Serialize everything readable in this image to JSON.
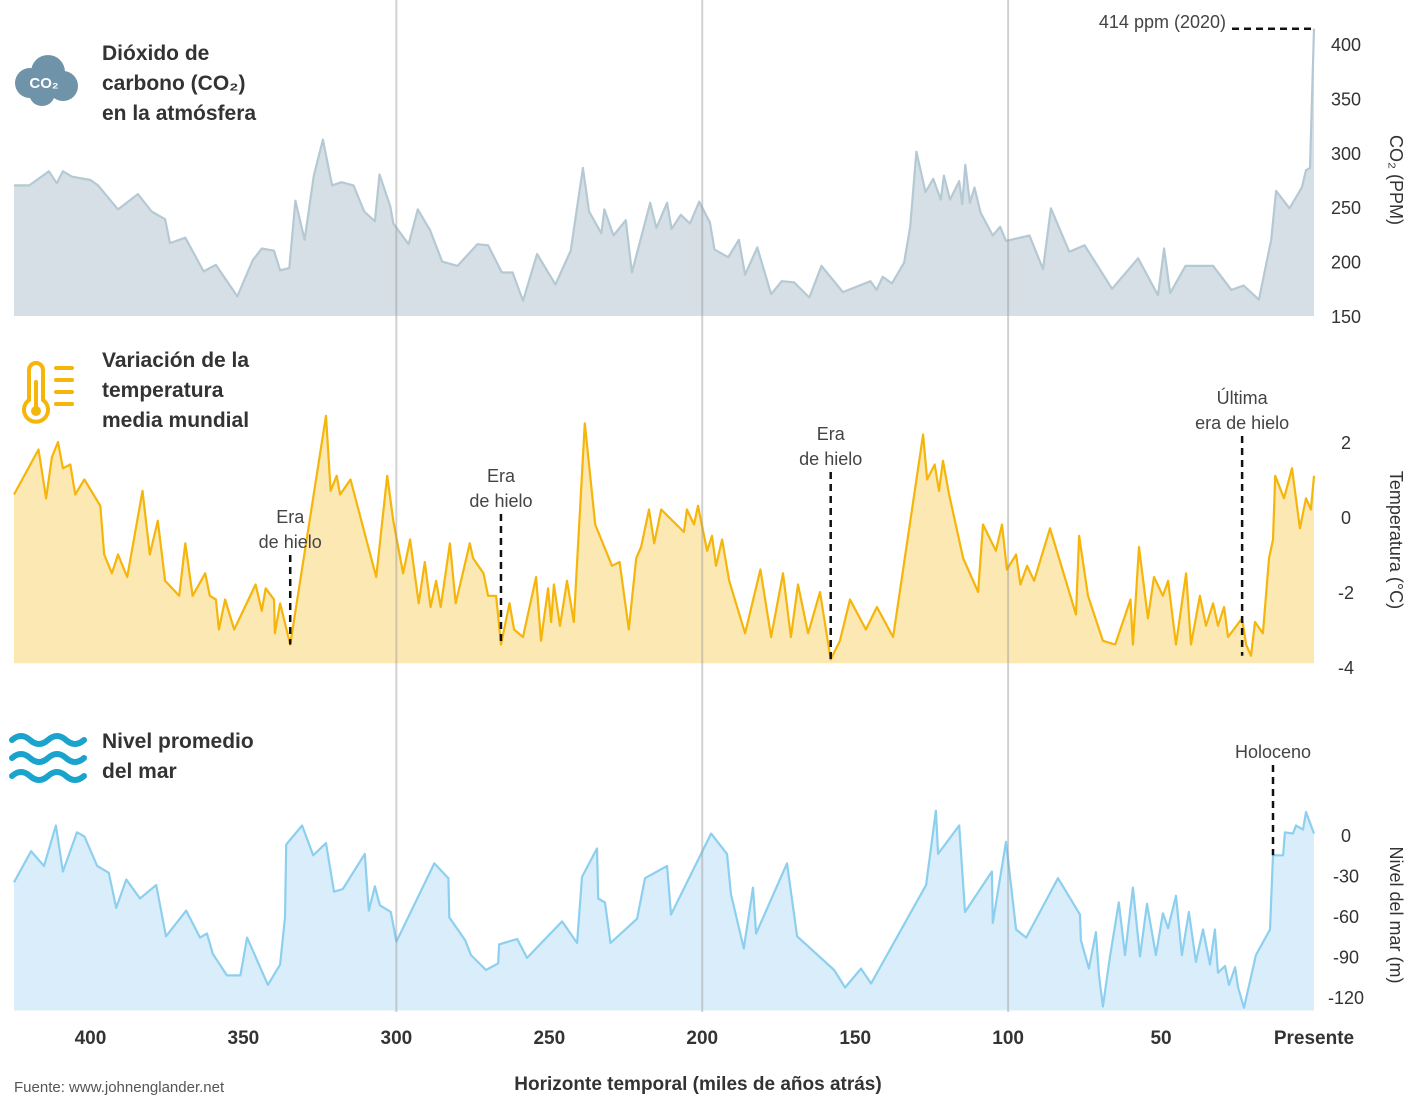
{
  "reference_lines": [
    300,
    200,
    100
  ],
  "source": "Fuente: www.johnenglander.net",
  "chart_data": [
    {
      "type": "area",
      "title_lines": [
        "Dióxido de",
        "carbono (CO₂)",
        "en la atmósfera"
      ],
      "icon_label": "CO₂",
      "y_label": "CO₂ (PPM)",
      "line_color": "#b5c9d4",
      "fill_color": "#d5dfe5",
      "xlim": [
        425,
        0
      ],
      "ylim": [
        150,
        420
      ],
      "yticks": [
        150,
        200,
        250,
        300,
        350,
        400
      ],
      "x": [
        425,
        420,
        413.6,
        411,
        409,
        406,
        400,
        397.5,
        391,
        384.5,
        380,
        375.6,
        374,
        369,
        363,
        359,
        352,
        347,
        344,
        340,
        338,
        335,
        333,
        330,
        327,
        324,
        321,
        318,
        314,
        310.5,
        307,
        305.5,
        302,
        301,
        296,
        293,
        289,
        285,
        280,
        273.5,
        270,
        265.5,
        262,
        258.6,
        254,
        248,
        243,
        239,
        237,
        233,
        232,
        229,
        225,
        223,
        217,
        215,
        211.5,
        210,
        207,
        204,
        201,
        197.5,
        196,
        191.5,
        188,
        186,
        182,
        177.5,
        174,
        170,
        165,
        161,
        154,
        145,
        143,
        141,
        138,
        134,
        132,
        130,
        127,
        124.5,
        122,
        121,
        119,
        116,
        115,
        114,
        112.5,
        111,
        109,
        105,
        102.6,
        100.7,
        93,
        88.6,
        86,
        80,
        75,
        66,
        57.5,
        51,
        49,
        47,
        42,
        33,
        27,
        23,
        18,
        14,
        12.4,
        8,
        4,
        2.6,
        1.3,
        0
      ],
      "values": [
        270,
        270,
        283,
        272,
        283,
        278,
        275,
        270,
        248,
        262,
        246,
        239,
        217,
        222,
        191,
        197,
        168,
        201,
        212,
        210,
        192,
        194,
        256,
        220,
        279,
        312,
        270,
        273,
        270,
        246,
        237,
        280,
        251,
        235,
        216,
        248,
        229,
        200,
        196,
        216,
        215,
        190,
        190,
        164,
        207,
        179,
        210,
        286,
        246,
        226,
        248,
        224,
        238,
        190,
        254,
        231,
        254,
        230,
        243,
        235,
        255,
        236,
        211,
        204,
        220,
        188,
        213,
        170,
        182,
        181,
        167,
        196,
        172,
        182,
        174,
        186,
        180,
        199,
        232,
        301,
        264,
        276,
        257,
        279,
        257,
        274,
        253,
        289,
        254,
        268,
        245,
        224,
        232,
        219,
        224,
        193,
        249,
        209,
        215,
        175,
        203,
        169,
        212,
        171,
        196,
        196,
        174,
        178,
        165,
        220,
        265,
        249,
        268,
        284,
        286,
        414
      ],
      "annotations": [
        {
          "text": [
            "414 ppm (2020)"
          ],
          "x": 0,
          "y": 414
        }
      ]
    },
    {
      "type": "area",
      "title_lines": [
        "Variación de la",
        "temperatura",
        "media mundial"
      ],
      "y_label": "Temperatura (°C)",
      "line_color": "#f5b50a",
      "fill_color": "#fce8b3",
      "xlim": [
        425,
        0
      ],
      "ylim": [
        -3.9,
        2.7
      ],
      "yticks": [
        -4,
        -2,
        0,
        2
      ],
      "x": [
        425,
        417,
        414.5,
        412.6,
        410.6,
        409,
        406.6,
        405,
        402,
        396.8,
        395.5,
        393,
        391,
        388,
        383,
        380.6,
        378,
        375.6,
        371,
        369,
        366.6,
        362.5,
        361,
        359,
        358,
        356,
        353,
        346,
        344,
        342.7,
        340,
        339.7,
        338,
        334.7,
        323,
        321.5,
        319.5,
        318.4,
        315,
        306.6,
        303,
        301,
        297.8,
        295.5,
        292.7,
        290.7,
        288.8,
        287,
        285.5,
        282.5,
        280.6,
        276,
        274.9,
        271.5,
        270,
        267.4,
        265.8,
        263,
        261.5,
        258.6,
        254.3,
        252.7,
        250.4,
        249.4,
        248.5,
        246.5,
        244.2,
        242,
        238.4,
        235,
        229.5,
        227,
        224,
        221.6,
        220,
        217.4,
        215.7,
        213.4,
        206,
        205,
        202.7,
        201.4,
        198.4,
        196.8,
        195.5,
        193.5,
        191.2,
        186,
        181,
        177.5,
        173.6,
        171,
        168.7,
        165.4,
        161.5,
        158,
        155,
        151.7,
        146.5,
        142.9,
        137.6,
        127.8,
        126.5,
        124,
        122.6,
        121.3,
        119.3,
        114.7,
        109.8,
        108.2,
        104,
        102,
        100.4,
        97.4,
        96,
        93.8,
        91.5,
        86.3,
        77.8,
        76.8,
        73.9,
        69,
        65,
        60,
        59.2,
        57.2,
        54.3,
        52.3,
        49.4,
        47.7,
        45.1,
        41.8,
        40.2,
        37.3,
        35.3,
        33,
        31.4,
        29.4,
        28.1,
        23.5,
        22.2,
        20.6,
        19.3,
        16.7,
        14.7,
        13.4,
        12.7,
        9.8,
        7.2,
        4.6,
        2.6,
        1,
        0
      ],
      "values": [
        0.6,
        1.8,
        0.5,
        1.6,
        2.0,
        1.3,
        1.4,
        0.6,
        1.0,
        0.3,
        -1.0,
        -1.5,
        -1.0,
        -1.6,
        0.7,
        -1.0,
        -0.1,
        -1.7,
        -2.1,
        -0.7,
        -2.1,
        -1.5,
        -2.1,
        -2.2,
        -3.0,
        -2.2,
        -3.0,
        -1.8,
        -2.5,
        -1.9,
        -2.2,
        -3.1,
        -2.3,
        -3.4,
        2.7,
        0.7,
        1.1,
        0.6,
        1.0,
        -1.6,
        1.1,
        -0.1,
        -1.5,
        -0.6,
        -2.3,
        -1.2,
        -2.4,
        -1.7,
        -2.4,
        -0.7,
        -2.3,
        -0.7,
        -1.1,
        -1.5,
        -2.1,
        -2.1,
        -3.4,
        -2.3,
        -3.0,
        -3.2,
        -1.6,
        -3.3,
        -1.9,
        -2.8,
        -1.8,
        -2.9,
        -1.7,
        -2.8,
        2.5,
        -0.2,
        -1.3,
        -1.2,
        -3.0,
        -1.1,
        -0.8,
        0.2,
        -0.7,
        0.2,
        -0.4,
        0.2,
        -0.2,
        0.3,
        -0.9,
        -0.5,
        -1.3,
        -0.6,
        -1.7,
        -3.1,
        -1.4,
        -3.2,
        -1.5,
        -3.2,
        -1.8,
        -3.1,
        -2.0,
        -3.8,
        -3.3,
        -2.2,
        -3.0,
        -2.4,
        -3.2,
        2.2,
        1.0,
        1.4,
        0.7,
        1.5,
        0.6,
        -1.1,
        -2.0,
        -0.2,
        -0.9,
        -0.2,
        -1.4,
        -1.0,
        -1.8,
        -1.3,
        -1.7,
        -0.3,
        -2.6,
        -0.5,
        -2.1,
        -3.3,
        -3.4,
        -2.2,
        -3.4,
        -0.8,
        -2.7,
        -1.6,
        -2.1,
        -1.7,
        -3.4,
        -1.5,
        -3.4,
        -2.1,
        -2.9,
        -2.3,
        -2.9,
        -2.4,
        -3.2,
        -2.7,
        -3.4,
        -3.7,
        -2.8,
        -3.1,
        -1.1,
        -0.6,
        1.1,
        0.5,
        1.3,
        -0.3,
        0.5,
        0.2,
        1.1
      ],
      "annotations": [
        {
          "text": [
            "Era",
            "de hielo"
          ],
          "x": 334.7,
          "y": -3.4
        },
        {
          "text": [
            "Era",
            "de hielo"
          ],
          "x": 265.8,
          "y": -3.4
        },
        {
          "text": [
            "Era",
            "de hielo"
          ],
          "x": 158,
          "y": -3.8
        },
        {
          "text": [
            "Última",
            "era de hielo"
          ],
          "x": 23.5,
          "y": -3.7
        }
      ]
    },
    {
      "type": "area",
      "title_lines": [
        "Nivel promedio",
        "del mar"
      ],
      "y_label": "Nivel del mar (m)",
      "line_color": "#8dcfee",
      "fill_color": "#d9eefa",
      "xlim": [
        425,
        0
      ],
      "ylim": [
        -130,
        20
      ],
      "yticks": [
        -120,
        -90,
        -60,
        -30,
        0
      ],
      "xticks": [
        400,
        350,
        300,
        250,
        200,
        150,
        100,
        50,
        {
          "value": 0,
          "label": "Presente"
        }
      ],
      "x_label": "Horizonte temporal (miles de años atrás)",
      "x": [
        425,
        419.4,
        415.2,
        411.3,
        409,
        404.4,
        402,
        397.8,
        394,
        391.6,
        388.3,
        383.8,
        378.5,
        375.3,
        368.7,
        364.2,
        361.9,
        360,
        355.4,
        351,
        348.8,
        342,
        338,
        336.4,
        336,
        330.8,
        327.2,
        323,
        320.4,
        317.5,
        310.3,
        309,
        307,
        305.4,
        301.8,
        300,
        287.6,
        283,
        282.7,
        277.5,
        275.6,
        270.7,
        266.7,
        266.4,
        260.5,
        257.3,
        245.8,
        240.9,
        239.3,
        234.4,
        234,
        231.8,
        230,
        221.3,
        218.7,
        211.5,
        210.2,
        197.1,
        191.9,
        190.6,
        186.4,
        183.4,
        182.4,
        178.5,
        172.3,
        169,
        156.9,
        153.3,
        148.1,
        144.8,
        126.8,
        123.6,
        122.9,
        116,
        114.1,
        105.3,
        105,
        100.7,
        97.4,
        94.1,
        83.7,
        76.5,
        76.2,
        73.6,
        71.3,
        70.3,
        69,
        66.7,
        63.8,
        61.8,
        59.2,
        56.9,
        54.6,
        51.7,
        49.4,
        47.7,
        45.1,
        43.2,
        40.9,
        38.6,
        36.3,
        34,
        32.4,
        31.4,
        29.1,
        27.8,
        25.8,
        24.8,
        22.9,
        19,
        14.4,
        13.4,
        10.1,
        9.5,
        6.9,
        5.9,
        3.6,
        2.6,
        0
      ],
      "values": [
        -35,
        -12,
        -23,
        7,
        -27,
        2,
        -1,
        -23,
        -28,
        -54,
        -33,
        -47,
        -37,
        -75,
        -56,
        -76,
        -73,
        -88,
        -104,
        -104,
        -76,
        -111,
        -96,
        -61,
        -7,
        7,
        -15,
        -6,
        -42,
        -40,
        -14,
        -56,
        -38,
        -52,
        -57,
        -79,
        -21,
        -32,
        -61,
        -78,
        -89,
        -100,
        -95,
        -81,
        -77,
        -91,
        -64,
        -80,
        -31,
        -10,
        -47,
        -50,
        -80,
        -62,
        -32,
        -23,
        -59,
        1,
        -14,
        -44,
        -84,
        -39,
        -73,
        -53,
        -21,
        -75,
        -100,
        -113,
        -99,
        -110,
        -37,
        18,
        -14,
        7,
        -57,
        -27,
        -65,
        -5,
        -70,
        -76,
        -32,
        -59,
        -78,
        -99,
        -72,
        -104,
        -127,
        -90,
        -50,
        -89,
        -39,
        -90,
        -51,
        -89,
        -58,
        -69,
        -45,
        -89,
        -57,
        -94,
        -70,
        -96,
        -70,
        -102,
        -97,
        -111,
        -98,
        -113,
        -128,
        -89,
        -70,
        -15,
        -15,
        2,
        1,
        7,
        4,
        17,
        1
      ],
      "annotations": [
        {
          "text": [
            "Holoceno"
          ],
          "x": 13.4,
          "y": -15
        }
      ]
    }
  ]
}
